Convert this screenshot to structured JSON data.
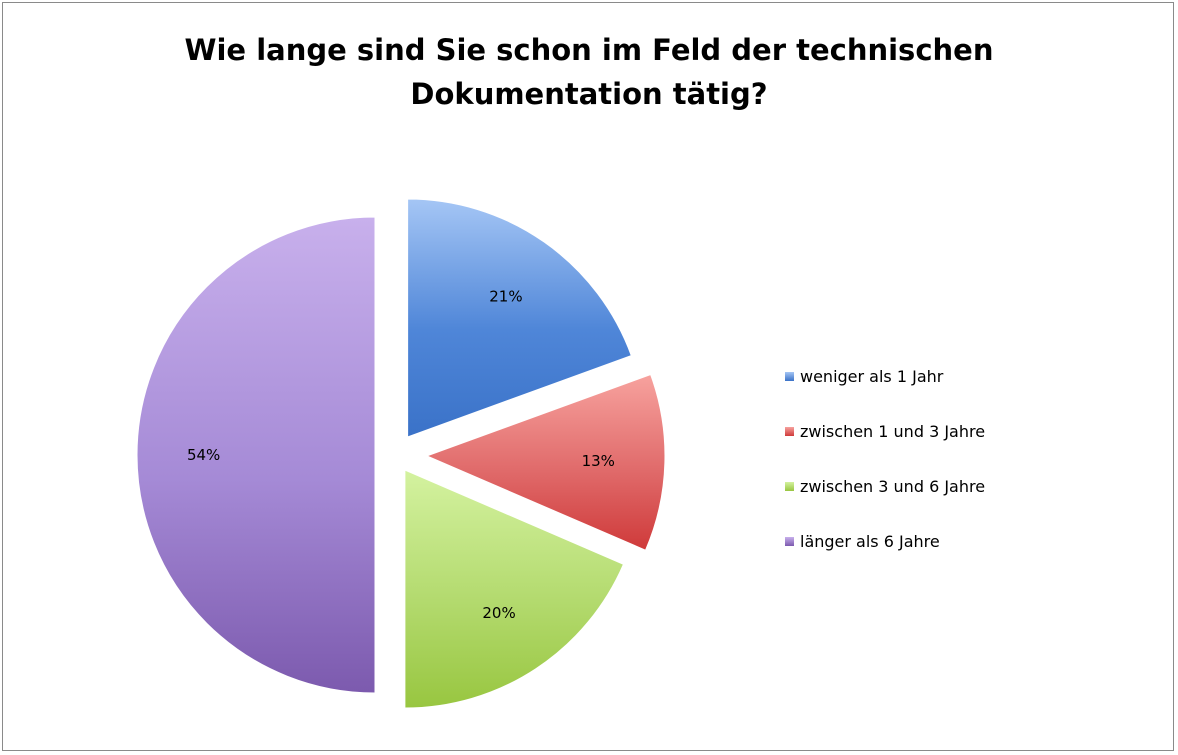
{
  "chart_data": {
    "type": "pie",
    "title_lines": [
      "Wie lange sind Sie schon im Feld der technischen",
      "Dokumentation tätig?"
    ],
    "slices": [
      {
        "label": "weniger als 1 Jahr",
        "value": 21,
        "display": "21%",
        "color": "#4f86d8",
        "color_light": "#a5c6f5",
        "color_dark": "#3a72c8"
      },
      {
        "label": "zwischen 1 und 3 Jahre",
        "value": 13,
        "display": "13%",
        "color": "#e06a6a",
        "color_light": "#f7a29e",
        "color_dark": "#cf3a3a"
      },
      {
        "label": "zwischen 3 und 6 Jahre",
        "value": 20,
        "display": "20%",
        "color": "#b3da6e",
        "color_light": "#d4f2a0",
        "color_dark": "#98c640"
      },
      {
        "label": "länger als 6 Jahre",
        "value": 54,
        "display": "54%",
        "color": "#a58ad6",
        "color_light": "#c8b0ec",
        "color_dark": "#7c5aae"
      }
    ],
    "legend_position": "right",
    "start_angle_deg": 0,
    "direction": "clockwise",
    "exploded": true
  }
}
